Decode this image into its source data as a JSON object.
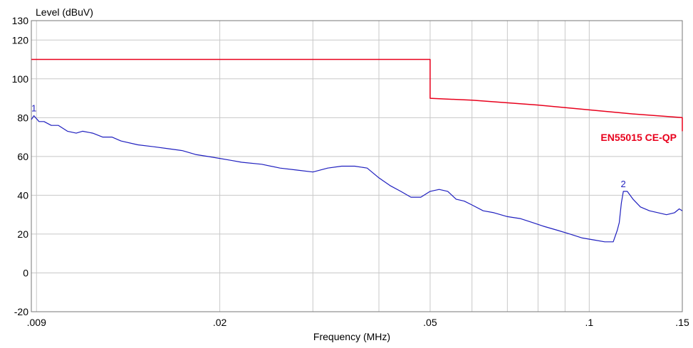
{
  "chart_data": {
    "type": "line",
    "ylabel": "Level (dBuV)",
    "xlabel": "Frequency (MHz)",
    "xscale": "log",
    "xlim": [
      0.0088,
      0.15
    ],
    "ylim": [
      -20,
      130
    ],
    "x_ticks": [
      {
        "value": 0.009,
        "label": ".009"
      },
      {
        "value": 0.02,
        "label": ".02"
      },
      {
        "value": 0.05,
        "label": ".05"
      },
      {
        "value": 0.1,
        "label": ".1"
      },
      {
        "value": 0.15,
        "label": ".15"
      }
    ],
    "x_minor_gridlines": [
      0.03,
      0.04,
      0.06,
      0.07,
      0.08,
      0.09
    ],
    "y_ticks": [
      {
        "value": -20,
        "label": "-20"
      },
      {
        "value": 0,
        "label": "0"
      },
      {
        "value": 20,
        "label": "20"
      },
      {
        "value": 40,
        "label": "40"
      },
      {
        "value": 60,
        "label": "60"
      },
      {
        "value": 80,
        "label": "80"
      },
      {
        "value": 100,
        "label": "100"
      },
      {
        "value": 120,
        "label": "120"
      },
      {
        "value": 130,
        "label": "130"
      }
    ],
    "grid": true,
    "series": [
      {
        "name": "EN55015 CE-QP",
        "color": "#e8001c",
        "points": [
          [
            0.0088,
            110
          ],
          [
            0.05,
            110
          ],
          [
            0.05,
            90
          ],
          [
            0.06,
            89
          ],
          [
            0.08,
            86.5
          ],
          [
            0.1,
            84
          ],
          [
            0.12,
            82
          ],
          [
            0.15,
            80
          ],
          [
            0.15,
            73
          ]
        ]
      },
      {
        "color": "#1f1fbf",
        "points": [
          [
            0.0088,
            79
          ],
          [
            0.0089,
            81
          ],
          [
            0.0091,
            78
          ],
          [
            0.0093,
            78
          ],
          [
            0.0096,
            76
          ],
          [
            0.0099,
            76
          ],
          [
            0.0103,
            73
          ],
          [
            0.0107,
            72
          ],
          [
            0.011,
            73
          ],
          [
            0.0115,
            72
          ],
          [
            0.012,
            70
          ],
          [
            0.0125,
            70
          ],
          [
            0.013,
            68
          ],
          [
            0.014,
            66
          ],
          [
            0.015,
            65
          ],
          [
            0.016,
            64
          ],
          [
            0.017,
            63
          ],
          [
            0.018,
            61
          ],
          [
            0.019,
            60
          ],
          [
            0.02,
            59
          ],
          [
            0.021,
            58
          ],
          [
            0.022,
            57
          ],
          [
            0.024,
            56
          ],
          [
            0.026,
            54
          ],
          [
            0.028,
            53
          ],
          [
            0.03,
            52
          ],
          [
            0.032,
            54
          ],
          [
            0.034,
            55
          ],
          [
            0.036,
            55
          ],
          [
            0.038,
            54
          ],
          [
            0.04,
            49
          ],
          [
            0.042,
            45
          ],
          [
            0.044,
            42
          ],
          [
            0.046,
            39
          ],
          [
            0.048,
            39
          ],
          [
            0.05,
            42
          ],
          [
            0.052,
            43
          ],
          [
            0.054,
            42
          ],
          [
            0.056,
            38
          ],
          [
            0.058,
            37
          ],
          [
            0.06,
            35
          ],
          [
            0.063,
            32
          ],
          [
            0.066,
            31
          ],
          [
            0.07,
            29
          ],
          [
            0.074,
            28
          ],
          [
            0.078,
            26
          ],
          [
            0.082,
            24
          ],
          [
            0.087,
            22
          ],
          [
            0.092,
            20
          ],
          [
            0.097,
            18
          ],
          [
            0.102,
            17
          ],
          [
            0.107,
            16
          ],
          [
            0.111,
            16
          ],
          [
            0.113,
            22
          ],
          [
            0.114,
            26
          ],
          [
            0.115,
            36
          ],
          [
            0.116,
            42
          ],
          [
            0.118,
            42
          ],
          [
            0.121,
            38
          ],
          [
            0.125,
            34
          ],
          [
            0.13,
            32
          ],
          [
            0.135,
            31
          ],
          [
            0.14,
            30
          ],
          [
            0.145,
            31
          ],
          [
            0.148,
            33
          ],
          [
            0.15,
            32
          ]
        ]
      }
    ],
    "annotations": [
      {
        "label": "1",
        "x": 0.0089,
        "y": 81
      },
      {
        "label": "2",
        "x": 0.116,
        "y": 42
      }
    ],
    "limit_label": "EN55015 CE-QP"
  }
}
